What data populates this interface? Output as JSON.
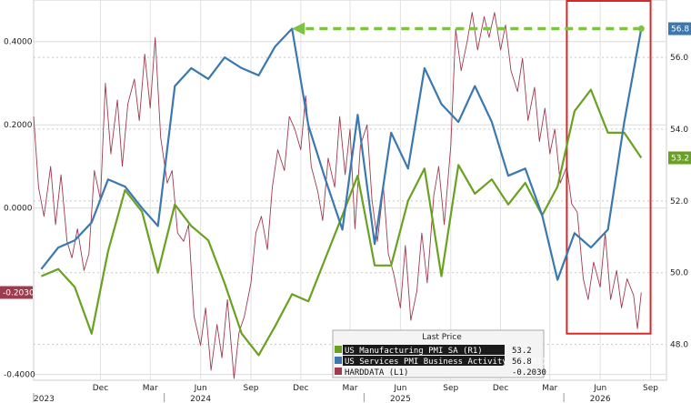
{
  "chart_data": {
    "type": "line",
    "left_axis": {
      "ticks": [
        {
          "value": 0.4,
          "label": "0.4000"
        },
        {
          "value": 0.2,
          "label": "0.2000"
        },
        {
          "value": 0.0,
          "label": "0.0000"
        },
        {
          "value": -0.4,
          "label": "-0.4000"
        }
      ],
      "range": [
        -0.414,
        0.5
      ]
    },
    "right_axis": {
      "ticks": [
        {
          "value": 56.0,
          "label": "56.0"
        },
        {
          "value": 54.0,
          "label": "54.0"
        },
        {
          "value": 52.0,
          "label": "52.0"
        },
        {
          "value": 50.0,
          "label": "50.0"
        },
        {
          "value": 48.0,
          "label": "48.0"
        }
      ],
      "range": [
        47.0,
        57.6
      ]
    },
    "x_axis": {
      "range": [
        "2023-08-01",
        "2026-09-30"
      ],
      "month_ticks": [
        {
          "date": "2023-12-01",
          "label": "Dec"
        },
        {
          "date": "2024-03-01",
          "label": "Mar"
        },
        {
          "date": "2024-06-01",
          "label": "Jun"
        },
        {
          "date": "2024-09-01",
          "label": "Sep"
        },
        {
          "date": "2024-12-01",
          "label": "Dec"
        },
        {
          "date": "2025-03-01",
          "label": "Mar"
        },
        {
          "date": "2025-06-01",
          "label": "Jun"
        },
        {
          "date": "2025-09-01",
          "label": "Sep"
        },
        {
          "date": "2025-12-01",
          "label": "Dec"
        },
        {
          "date": "2026-03-01",
          "label": "Mar"
        },
        {
          "date": "2026-06-01",
          "label": "Jun"
        },
        {
          "date": "2026-09-01",
          "label": "Sep"
        }
      ],
      "year_ticks": [
        {
          "date": "2023-08-01",
          "label": "2023"
        },
        {
          "date": "2024-06-01",
          "label": "2024"
        },
        {
          "date": "2025-06-01",
          "label": "2025"
        },
        {
          "date": "2026-06-01",
          "label": "2026"
        }
      ]
    },
    "series": [
      {
        "name": "US Manufacturing PMI SA (R1)",
        "axis": "right",
        "color": "#6aa121",
        "last_value": 53.2,
        "last_label": "53.2",
        "points": [
          [
            "2023-08-15",
            49.9
          ],
          [
            "2023-09-15",
            50.1
          ],
          [
            "2023-10-15",
            49.6
          ],
          [
            "2023-11-15",
            48.3
          ],
          [
            "2023-12-15",
            50.6
          ],
          [
            "2024-01-15",
            52.3
          ],
          [
            "2024-02-15",
            51.7
          ],
          [
            "2024-03-15",
            50.0
          ],
          [
            "2024-04-15",
            51.9
          ],
          [
            "2024-05-15",
            51.3
          ],
          [
            "2024-06-15",
            50.9
          ],
          [
            "2024-07-15",
            49.7
          ],
          [
            "2024-08-15",
            48.3
          ],
          [
            "2024-09-15",
            47.7
          ],
          [
            "2024-10-15",
            48.5
          ],
          [
            "2024-11-15",
            49.4
          ],
          [
            "2024-12-15",
            49.2
          ],
          [
            "2025-01-15",
            50.4
          ],
          [
            "2025-02-15",
            51.6
          ],
          [
            "2025-03-15",
            52.7
          ],
          [
            "2025-04-15",
            50.2
          ],
          [
            "2025-05-15",
            50.2
          ],
          [
            "2025-06-15",
            52.0
          ],
          [
            "2025-07-15",
            52.9
          ],
          [
            "2025-08-15",
            49.9
          ],
          [
            "2025-09-15",
            53.0
          ],
          [
            "2025-10-15",
            52.2
          ],
          [
            "2025-11-15",
            52.6
          ],
          [
            "2025-12-15",
            51.9
          ],
          [
            "2026-01-15",
            52.5
          ],
          [
            "2026-02-15",
            51.6
          ],
          [
            "2026-03-15",
            52.4
          ],
          [
            "2026-04-15",
            54.5
          ],
          [
            "2026-05-15",
            55.1
          ],
          [
            "2026-06-15",
            53.9
          ],
          [
            "2026-07-15",
            53.9
          ],
          [
            "2026-08-15",
            53.2
          ]
        ]
      },
      {
        "name": "US Services PMI Business Activity SA (R1)",
        "axis": "right",
        "color": "#3b78b0",
        "last_value": 56.8,
        "last_label": "56.8",
        "points": [
          [
            "2023-08-15",
            50.1
          ],
          [
            "2023-09-15",
            50.7
          ],
          [
            "2023-10-15",
            50.9
          ],
          [
            "2023-11-15",
            51.4
          ],
          [
            "2023-12-15",
            52.6
          ],
          [
            "2024-01-15",
            52.4
          ],
          [
            "2024-02-15",
            51.8
          ],
          [
            "2024-03-15",
            51.3
          ],
          [
            "2024-04-15",
            55.2
          ],
          [
            "2024-05-15",
            55.7
          ],
          [
            "2024-06-15",
            55.4
          ],
          [
            "2024-07-15",
            56.0
          ],
          [
            "2024-08-15",
            55.7
          ],
          [
            "2024-09-15",
            55.5
          ],
          [
            "2024-10-15",
            56.3
          ],
          [
            "2024-11-15",
            56.8
          ],
          [
            "2024-12-15",
            54.1
          ],
          [
            "2025-01-15",
            52.6
          ],
          [
            "2025-02-15",
            51.2
          ],
          [
            "2025-03-15",
            54.4
          ],
          [
            "2025-04-15",
            50.8
          ],
          [
            "2025-05-15",
            53.9
          ],
          [
            "2025-06-15",
            52.9
          ],
          [
            "2025-07-15",
            55.7
          ],
          [
            "2025-08-15",
            54.7
          ],
          [
            "2025-09-15",
            54.2
          ],
          [
            "2025-10-15",
            55.2
          ],
          [
            "2025-11-15",
            54.2
          ],
          [
            "2025-12-15",
            52.7
          ],
          [
            "2026-01-15",
            52.9
          ],
          [
            "2026-02-15",
            51.6
          ],
          [
            "2026-03-15",
            49.8
          ],
          [
            "2026-04-15",
            51.1
          ],
          [
            "2026-05-15",
            50.7
          ],
          [
            "2026-06-15",
            51.2
          ],
          [
            "2026-07-15",
            54.2
          ],
          [
            "2026-08-15",
            56.8
          ]
        ]
      },
      {
        "name": "HARDDATA (L1)",
        "axis": "left",
        "color": "#9e3b4e",
        "last_value": -0.203,
        "last_label": "-0.2030",
        "points": [
          [
            "2023-08-01",
            0.22
          ],
          [
            "2023-08-10",
            0.05
          ],
          [
            "2023-08-20",
            -0.02
          ],
          [
            "2023-09-01",
            0.1
          ],
          [
            "2023-09-10",
            -0.04
          ],
          [
            "2023-09-20",
            0.08
          ],
          [
            "2023-10-01",
            -0.08
          ],
          [
            "2023-10-10",
            -0.12
          ],
          [
            "2023-10-20",
            -0.05
          ],
          [
            "2023-11-01",
            -0.15
          ],
          [
            "2023-11-10",
            -0.11
          ],
          [
            "2023-11-20",
            0.09
          ],
          [
            "2023-12-01",
            0.02
          ],
          [
            "2023-12-10",
            0.3
          ],
          [
            "2023-12-20",
            0.13
          ],
          [
            "2024-01-01",
            0.26
          ],
          [
            "2024-01-10",
            0.1
          ],
          [
            "2024-01-20",
            0.25
          ],
          [
            "2024-02-01",
            0.31
          ],
          [
            "2024-02-10",
            0.21
          ],
          [
            "2024-02-20",
            0.37
          ],
          [
            "2024-03-01",
            0.24
          ],
          [
            "2024-03-10",
            0.41
          ],
          [
            "2024-03-20",
            0.17
          ],
          [
            "2024-04-01",
            0.06
          ],
          [
            "2024-04-10",
            0.09
          ],
          [
            "2024-04-20",
            -0.06
          ],
          [
            "2024-05-01",
            -0.08
          ],
          [
            "2024-05-10",
            -0.04
          ],
          [
            "2024-05-20",
            -0.26
          ],
          [
            "2024-06-01",
            -0.33
          ],
          [
            "2024-06-10",
            -0.24
          ],
          [
            "2024-06-20",
            -0.39
          ],
          [
            "2024-07-01",
            -0.28
          ],
          [
            "2024-07-10",
            -0.36
          ],
          [
            "2024-07-20",
            -0.22
          ],
          [
            "2024-08-01",
            -0.41
          ],
          [
            "2024-08-10",
            -0.3
          ],
          [
            "2024-08-20",
            -0.26
          ],
          [
            "2024-09-01",
            -0.18
          ],
          [
            "2024-09-10",
            -0.06
          ],
          [
            "2024-09-20",
            -0.02
          ],
          [
            "2024-10-01",
            -0.1
          ],
          [
            "2024-10-10",
            0.05
          ],
          [
            "2024-10-20",
            0.14
          ],
          [
            "2024-11-01",
            0.09
          ],
          [
            "2024-11-10",
            0.22
          ],
          [
            "2024-11-20",
            0.19
          ],
          [
            "2024-12-01",
            0.14
          ],
          [
            "2024-12-10",
            0.27
          ],
          [
            "2024-12-20",
            0.1
          ],
          [
            "2025-01-01",
            0.04
          ],
          [
            "2025-01-10",
            -0.03
          ],
          [
            "2025-01-20",
            0.12
          ],
          [
            "2025-02-01",
            0.05
          ],
          [
            "2025-02-10",
            0.22
          ],
          [
            "2025-02-20",
            0.08
          ],
          [
            "2025-03-01",
            0.19
          ],
          [
            "2025-03-10",
            -0.05
          ],
          [
            "2025-03-20",
            0.15
          ],
          [
            "2025-04-01",
            0.2
          ],
          [
            "2025-04-10",
            0.02
          ],
          [
            "2025-04-20",
            -0.08
          ],
          [
            "2025-05-01",
            0.05
          ],
          [
            "2025-05-10",
            -0.11
          ],
          [
            "2025-05-20",
            -0.16
          ],
          [
            "2025-06-01",
            -0.24
          ],
          [
            "2025-06-10",
            -0.09
          ],
          [
            "2025-06-20",
            -0.27
          ],
          [
            "2025-07-01",
            -0.2
          ],
          [
            "2025-07-10",
            -0.06
          ],
          [
            "2025-07-20",
            -0.18
          ],
          [
            "2025-08-01",
            0.03
          ],
          [
            "2025-08-10",
            0.1
          ],
          [
            "2025-08-20",
            -0.04
          ],
          [
            "2025-09-01",
            0.15
          ],
          [
            "2025-09-10",
            0.43
          ],
          [
            "2025-09-20",
            0.33
          ],
          [
            "2025-10-01",
            0.4
          ],
          [
            "2025-10-10",
            0.47
          ],
          [
            "2025-10-20",
            0.38
          ],
          [
            "2025-11-01",
            0.46
          ],
          [
            "2025-11-10",
            0.41
          ],
          [
            "2025-11-20",
            0.47
          ],
          [
            "2025-12-01",
            0.38
          ],
          [
            "2025-12-10",
            0.44
          ],
          [
            "2025-12-20",
            0.33
          ],
          [
            "2026-01-01",
            0.28
          ],
          [
            "2026-01-10",
            0.36
          ],
          [
            "2026-01-20",
            0.21
          ],
          [
            "2026-02-01",
            0.29
          ],
          [
            "2026-02-10",
            0.16
          ],
          [
            "2026-02-20",
            0.24
          ],
          [
            "2026-03-01",
            0.13
          ],
          [
            "2026-03-10",
            0.19
          ],
          [
            "2026-03-20",
            0.06
          ],
          [
            "2026-04-01",
            0.1
          ],
          [
            "2026-04-10",
            0.01
          ],
          [
            "2026-04-20",
            -0.01
          ],
          [
            "2026-05-01",
            -0.17
          ],
          [
            "2026-05-10",
            -0.22
          ],
          [
            "2026-05-20",
            -0.13
          ],
          [
            "2026-06-01",
            -0.19
          ],
          [
            "2026-06-10",
            -0.06
          ],
          [
            "2026-06-20",
            -0.22
          ],
          [
            "2026-07-01",
            -0.15
          ],
          [
            "2026-07-10",
            -0.24
          ],
          [
            "2026-07-20",
            -0.17
          ],
          [
            "2026-08-01",
            -0.21
          ],
          [
            "2026-08-08",
            -0.29
          ],
          [
            "2026-08-15",
            -0.203
          ]
        ]
      }
    ],
    "legend": {
      "header": "Last Price",
      "placement": "bottom-right",
      "entries": [
        {
          "label": "US Manufacturing PMI SA  (R1)",
          "value": "53.2",
          "color": "#6aa121"
        },
        {
          "label": "US Services PMI Business Activity SA  (R1)",
          "value": "56.8",
          "color": "#3b78b0"
        },
        {
          "label": "HARDDATA  (L1)",
          "value": "-0.2030",
          "color": "#9e3b4e"
        }
      ]
    },
    "annotations": {
      "dashed_arrow": {
        "from_date": "2026-08-15",
        "to_date": "2024-11-15",
        "level": 56.8,
        "color": "#7dc242"
      },
      "highlight_box": {
        "from_date": "2026-04-01",
        "to_date": "2026-09-01",
        "color": "#d42a2a"
      }
    },
    "grid": true
  }
}
